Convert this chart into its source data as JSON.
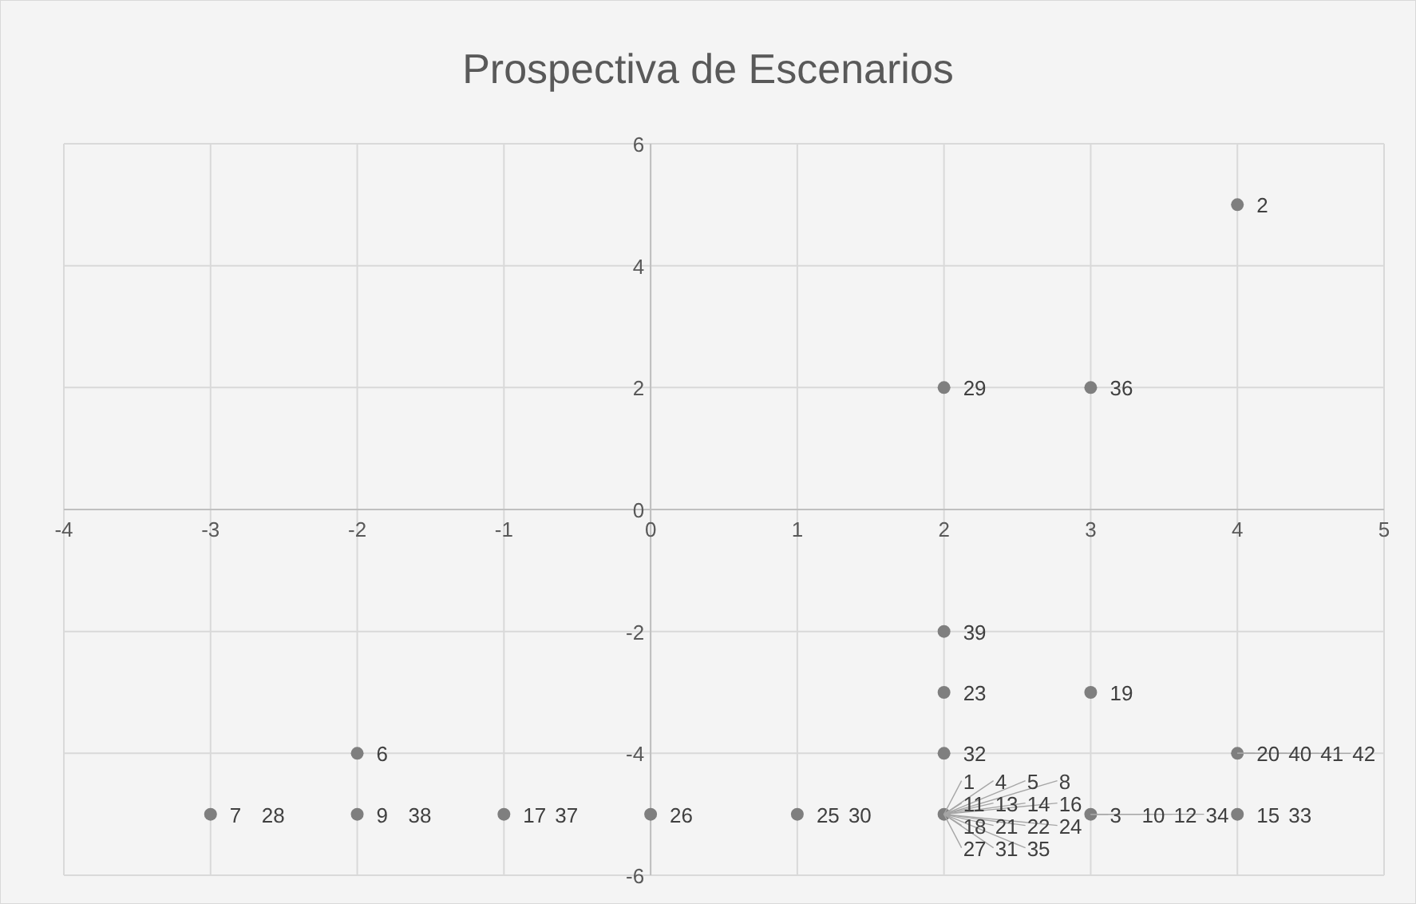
{
  "chart_data": {
    "type": "scatter",
    "title": "Prospectiva de Escenarios",
    "x": [
      4,
      2,
      3,
      2,
      2,
      3,
      2,
      -2,
      4,
      -3,
      -2,
      -1,
      0,
      1,
      2,
      3,
      4
    ],
    "values": [
      5,
      2,
      2,
      -2,
      -3,
      -3,
      -4,
      -4,
      -4,
      -5,
      -5,
      -5,
      -5,
      -5,
      -5,
      -5,
      -5
    ],
    "annotations": [
      {
        "text": "1",
        "x": 2,
        "y": -5
      },
      {
        "text": "2",
        "x": 4,
        "y": 5
      },
      {
        "text": "3",
        "x": 3,
        "y": -5
      },
      {
        "text": "4",
        "x": 2,
        "y": -5
      },
      {
        "text": "5",
        "x": 2,
        "y": -5
      },
      {
        "text": "6",
        "x": -2,
        "y": -4
      },
      {
        "text": "7",
        "x": -3,
        "y": -5
      },
      {
        "text": "8",
        "x": 2,
        "y": -5
      },
      {
        "text": "9",
        "x": -2,
        "y": -5
      },
      {
        "text": "10",
        "x": 3,
        "y": -5
      },
      {
        "text": "11",
        "x": 2,
        "y": -5
      },
      {
        "text": "12",
        "x": 3,
        "y": -5
      },
      {
        "text": "13",
        "x": 2,
        "y": -5
      },
      {
        "text": "14",
        "x": 2,
        "y": -5
      },
      {
        "text": "15",
        "x": 4,
        "y": -5
      },
      {
        "text": "16",
        "x": 2,
        "y": -5
      },
      {
        "text": "17",
        "x": -1,
        "y": -5
      },
      {
        "text": "18",
        "x": 2,
        "y": -5
      },
      {
        "text": "19",
        "x": 3,
        "y": -3
      },
      {
        "text": "20",
        "x": 4,
        "y": -4
      },
      {
        "text": "21",
        "x": 2,
        "y": -5
      },
      {
        "text": "22",
        "x": 2,
        "y": -5
      },
      {
        "text": "23",
        "x": 2,
        "y": -3
      },
      {
        "text": "24",
        "x": 2,
        "y": -5
      },
      {
        "text": "25",
        "x": 1,
        "y": -5
      },
      {
        "text": "26",
        "x": 0,
        "y": -5
      },
      {
        "text": "27",
        "x": 2,
        "y": -5
      },
      {
        "text": "28",
        "x": -3,
        "y": -5
      },
      {
        "text": "29",
        "x": 2,
        "y": 2
      },
      {
        "text": "30",
        "x": 1,
        "y": -5
      },
      {
        "text": "31",
        "x": 2,
        "y": -5
      },
      {
        "text": "32",
        "x": 2,
        "y": -4
      },
      {
        "text": "33",
        "x": 4,
        "y": -5
      },
      {
        "text": "34",
        "x": 3,
        "y": -5
      },
      {
        "text": "35",
        "x": 2,
        "y": -5
      },
      {
        "text": "36",
        "x": 3,
        "y": 2
      },
      {
        "text": "37",
        "x": -1,
        "y": -5
      },
      {
        "text": "38",
        "x": -2,
        "y": -5
      },
      {
        "text": "39",
        "x": 2,
        "y": -2
      },
      {
        "text": "40",
        "x": 4,
        "y": -4
      },
      {
        "text": "41",
        "x": 4,
        "y": -4
      },
      {
        "text": "42",
        "x": 4,
        "y": -4
      }
    ],
    "color": "#7f7f7f",
    "marker": "circle",
    "xlim": [
      -4,
      5
    ],
    "ylim": [
      -6,
      6
    ],
    "xticks": [
      -4,
      -3,
      -2,
      -1,
      0,
      1,
      2,
      3,
      4,
      5
    ],
    "yticks": [
      -6,
      -4,
      -2,
      0,
      2,
      4,
      6
    ],
    "grid": true
  }
}
